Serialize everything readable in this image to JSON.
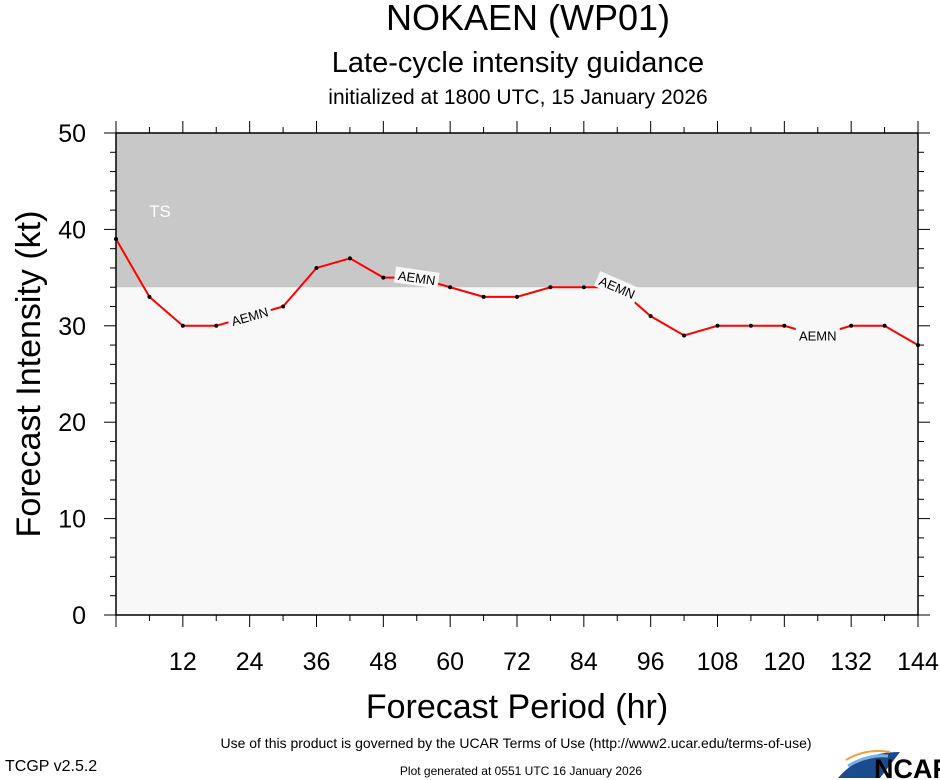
{
  "chart_data": {
    "type": "line",
    "title": "NOKAEN (WP01)",
    "subtitle": "Late-cycle intensity guidance",
    "subtitle2": "initialized at 1800 UTC, 15 January 2026",
    "xlabel": "Forecast Period (hr)",
    "ylabel": "Forecast Intensity (kt)",
    "xlim": [
      0,
      144
    ],
    "ylim": [
      0,
      50
    ],
    "xticks": [
      12,
      24,
      36,
      48,
      60,
      72,
      84,
      96,
      108,
      120,
      132,
      144
    ],
    "yticks": [
      0,
      10,
      20,
      30,
      40,
      50
    ],
    "grid": false,
    "bands": [
      {
        "label": "TS",
        "from": 34,
        "to": 50,
        "color": "#c8c8c8"
      }
    ],
    "background_color": "#f8f8f8",
    "series": [
      {
        "name": "AEMN",
        "color": "#ff0000",
        "x": [
          0,
          6,
          12,
          18,
          24,
          30,
          36,
          42,
          48,
          54,
          60,
          66,
          72,
          78,
          84,
          90,
          96,
          102,
          108,
          114,
          120,
          126,
          132,
          138,
          144
        ],
        "y": [
          39,
          33,
          30,
          30,
          31,
          32,
          36,
          37,
          35,
          35,
          34,
          33,
          33,
          34,
          34,
          34,
          31,
          29,
          30,
          30,
          30,
          29,
          30,
          30,
          28
        ],
        "label_positions": [
          24,
          54,
          90,
          126
        ]
      }
    ]
  },
  "footer": {
    "terms": "Use of this product is governed by the UCAR Terms of Use (http://www2.ucar.edu/terms-of-use)",
    "version": "TCGP v2.5.2",
    "generated": "Plot generated at 0551 UTC   16 January 2026",
    "logo": "NCAR"
  }
}
